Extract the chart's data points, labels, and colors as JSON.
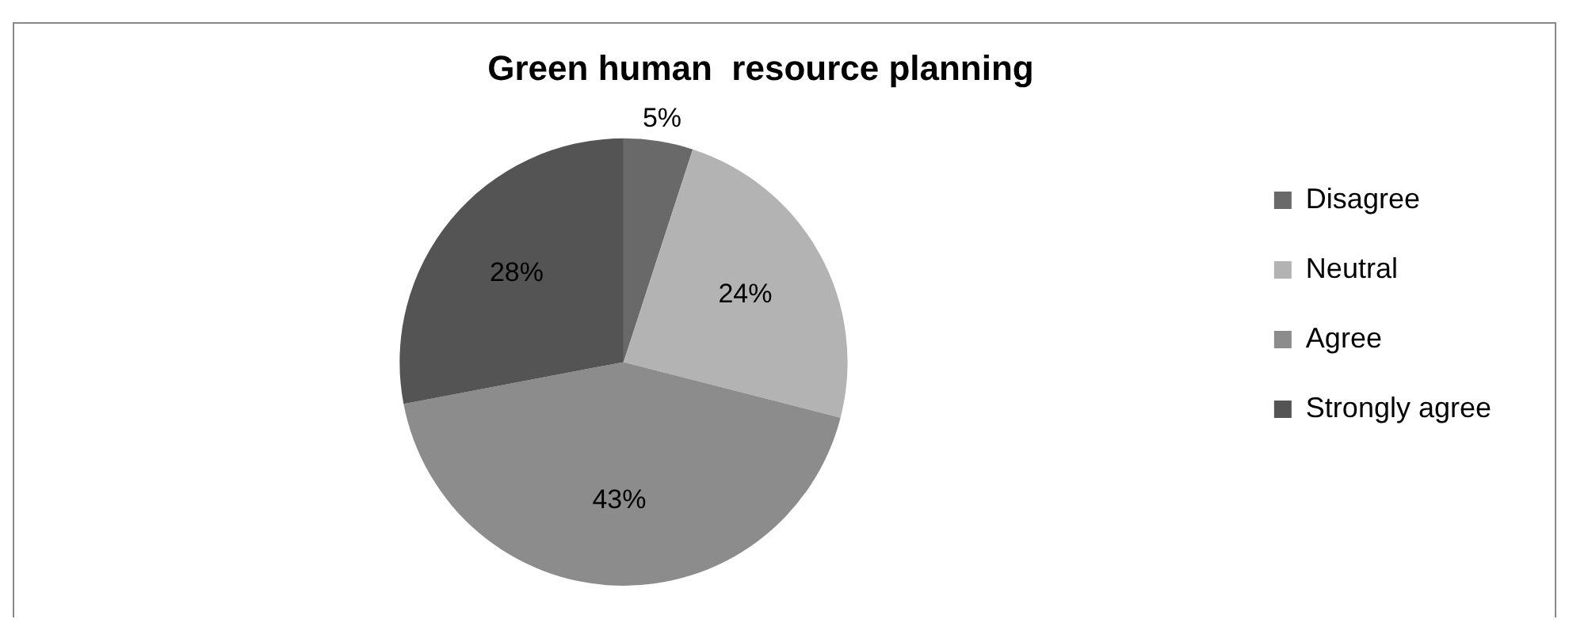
{
  "chart_data": {
    "type": "pie",
    "title": "Green human  resource planning",
    "categories": [
      "Disagree",
      "Neutral",
      "Agree",
      "Strongly agree"
    ],
    "values": [
      5,
      24,
      43,
      28
    ],
    "colors": [
      "#696969",
      "#b3b3b3",
      "#8c8c8c",
      "#545454"
    ],
    "value_labels": [
      "5%",
      "24%",
      "43%",
      "28%"
    ],
    "legend": "right"
  }
}
